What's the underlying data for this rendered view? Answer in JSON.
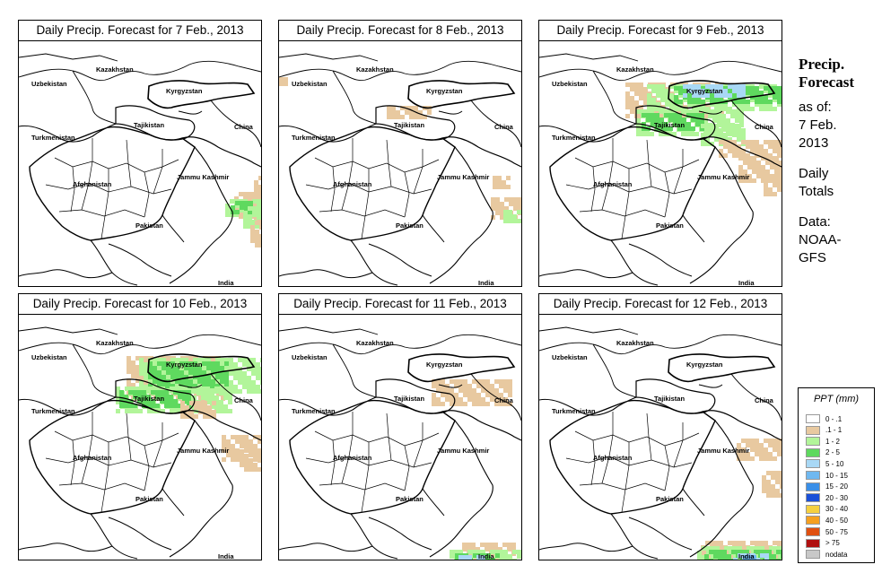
{
  "panels": [
    {
      "title": "Daily Precip. Forecast for  7 Feb., 2013"
    },
    {
      "title": "Daily Precip. Forecast for  8 Feb., 2013"
    },
    {
      "title": "Daily Precip. Forecast for  9 Feb., 2013"
    },
    {
      "title": "Daily Precip. Forecast for  10 Feb., 2013"
    },
    {
      "title": "Daily Precip. Forecast for  11 Feb., 2013"
    },
    {
      "title": "Daily Precip. Forecast for  12 Feb., 2013"
    }
  ],
  "map_labels": {
    "kazakhstan": "Kazakhstan",
    "uzbekistan": "Uzbekistan",
    "kyrgyzstan": "Kyrgyzstan",
    "tajikistan": "Tajikistan",
    "turkmenistan": "Turkmenistan",
    "china": "China",
    "jammu": "Jammu Kashmir",
    "afghanistan": "Afghanistan",
    "pakistan": "Pakistan",
    "india": "India"
  },
  "info": {
    "heading1": "Precip.",
    "heading2": "Forecast",
    "asof": "as of:",
    "date1": "7 Feb.",
    "date2": "2013",
    "daily": "Daily",
    "totals": "Totals",
    "data": "Data:",
    "src1": "NOAA-",
    "src2": "GFS"
  },
  "legend": {
    "title": "PPT (mm)",
    "items": [
      {
        "range": "0 - .1",
        "color": "#ffffff"
      },
      {
        "range": ".1 - 1",
        "color": "#e8c9a0"
      },
      {
        "range": "1 - 2",
        "color": "#b2f59a"
      },
      {
        "range": "2 - 5",
        "color": "#5fd95f"
      },
      {
        "range": "5 - 10",
        "color": "#a8d8f5"
      },
      {
        "range": "10 - 15",
        "color": "#6fb8f0"
      },
      {
        "range": "15 - 20",
        "color": "#3a8fe8"
      },
      {
        "range": "20 - 30",
        "color": "#1a50d8"
      },
      {
        "range": "30 - 40",
        "color": "#f5d040"
      },
      {
        "range": "40 - 50",
        "color": "#f5a020"
      },
      {
        "range": "50 - 75",
        "color": "#e05010"
      },
      {
        "range": "> 75",
        "color": "#b01010"
      },
      {
        "range": "nodata",
        "color": "#c8c8c8"
      }
    ]
  },
  "colors": {
    "tan": "#e8c9a0",
    "lightgreen": "#b2f59a",
    "green": "#5fd95f",
    "lightblue": "#a8d8f5",
    "blue": "#6fb8f0"
  }
}
